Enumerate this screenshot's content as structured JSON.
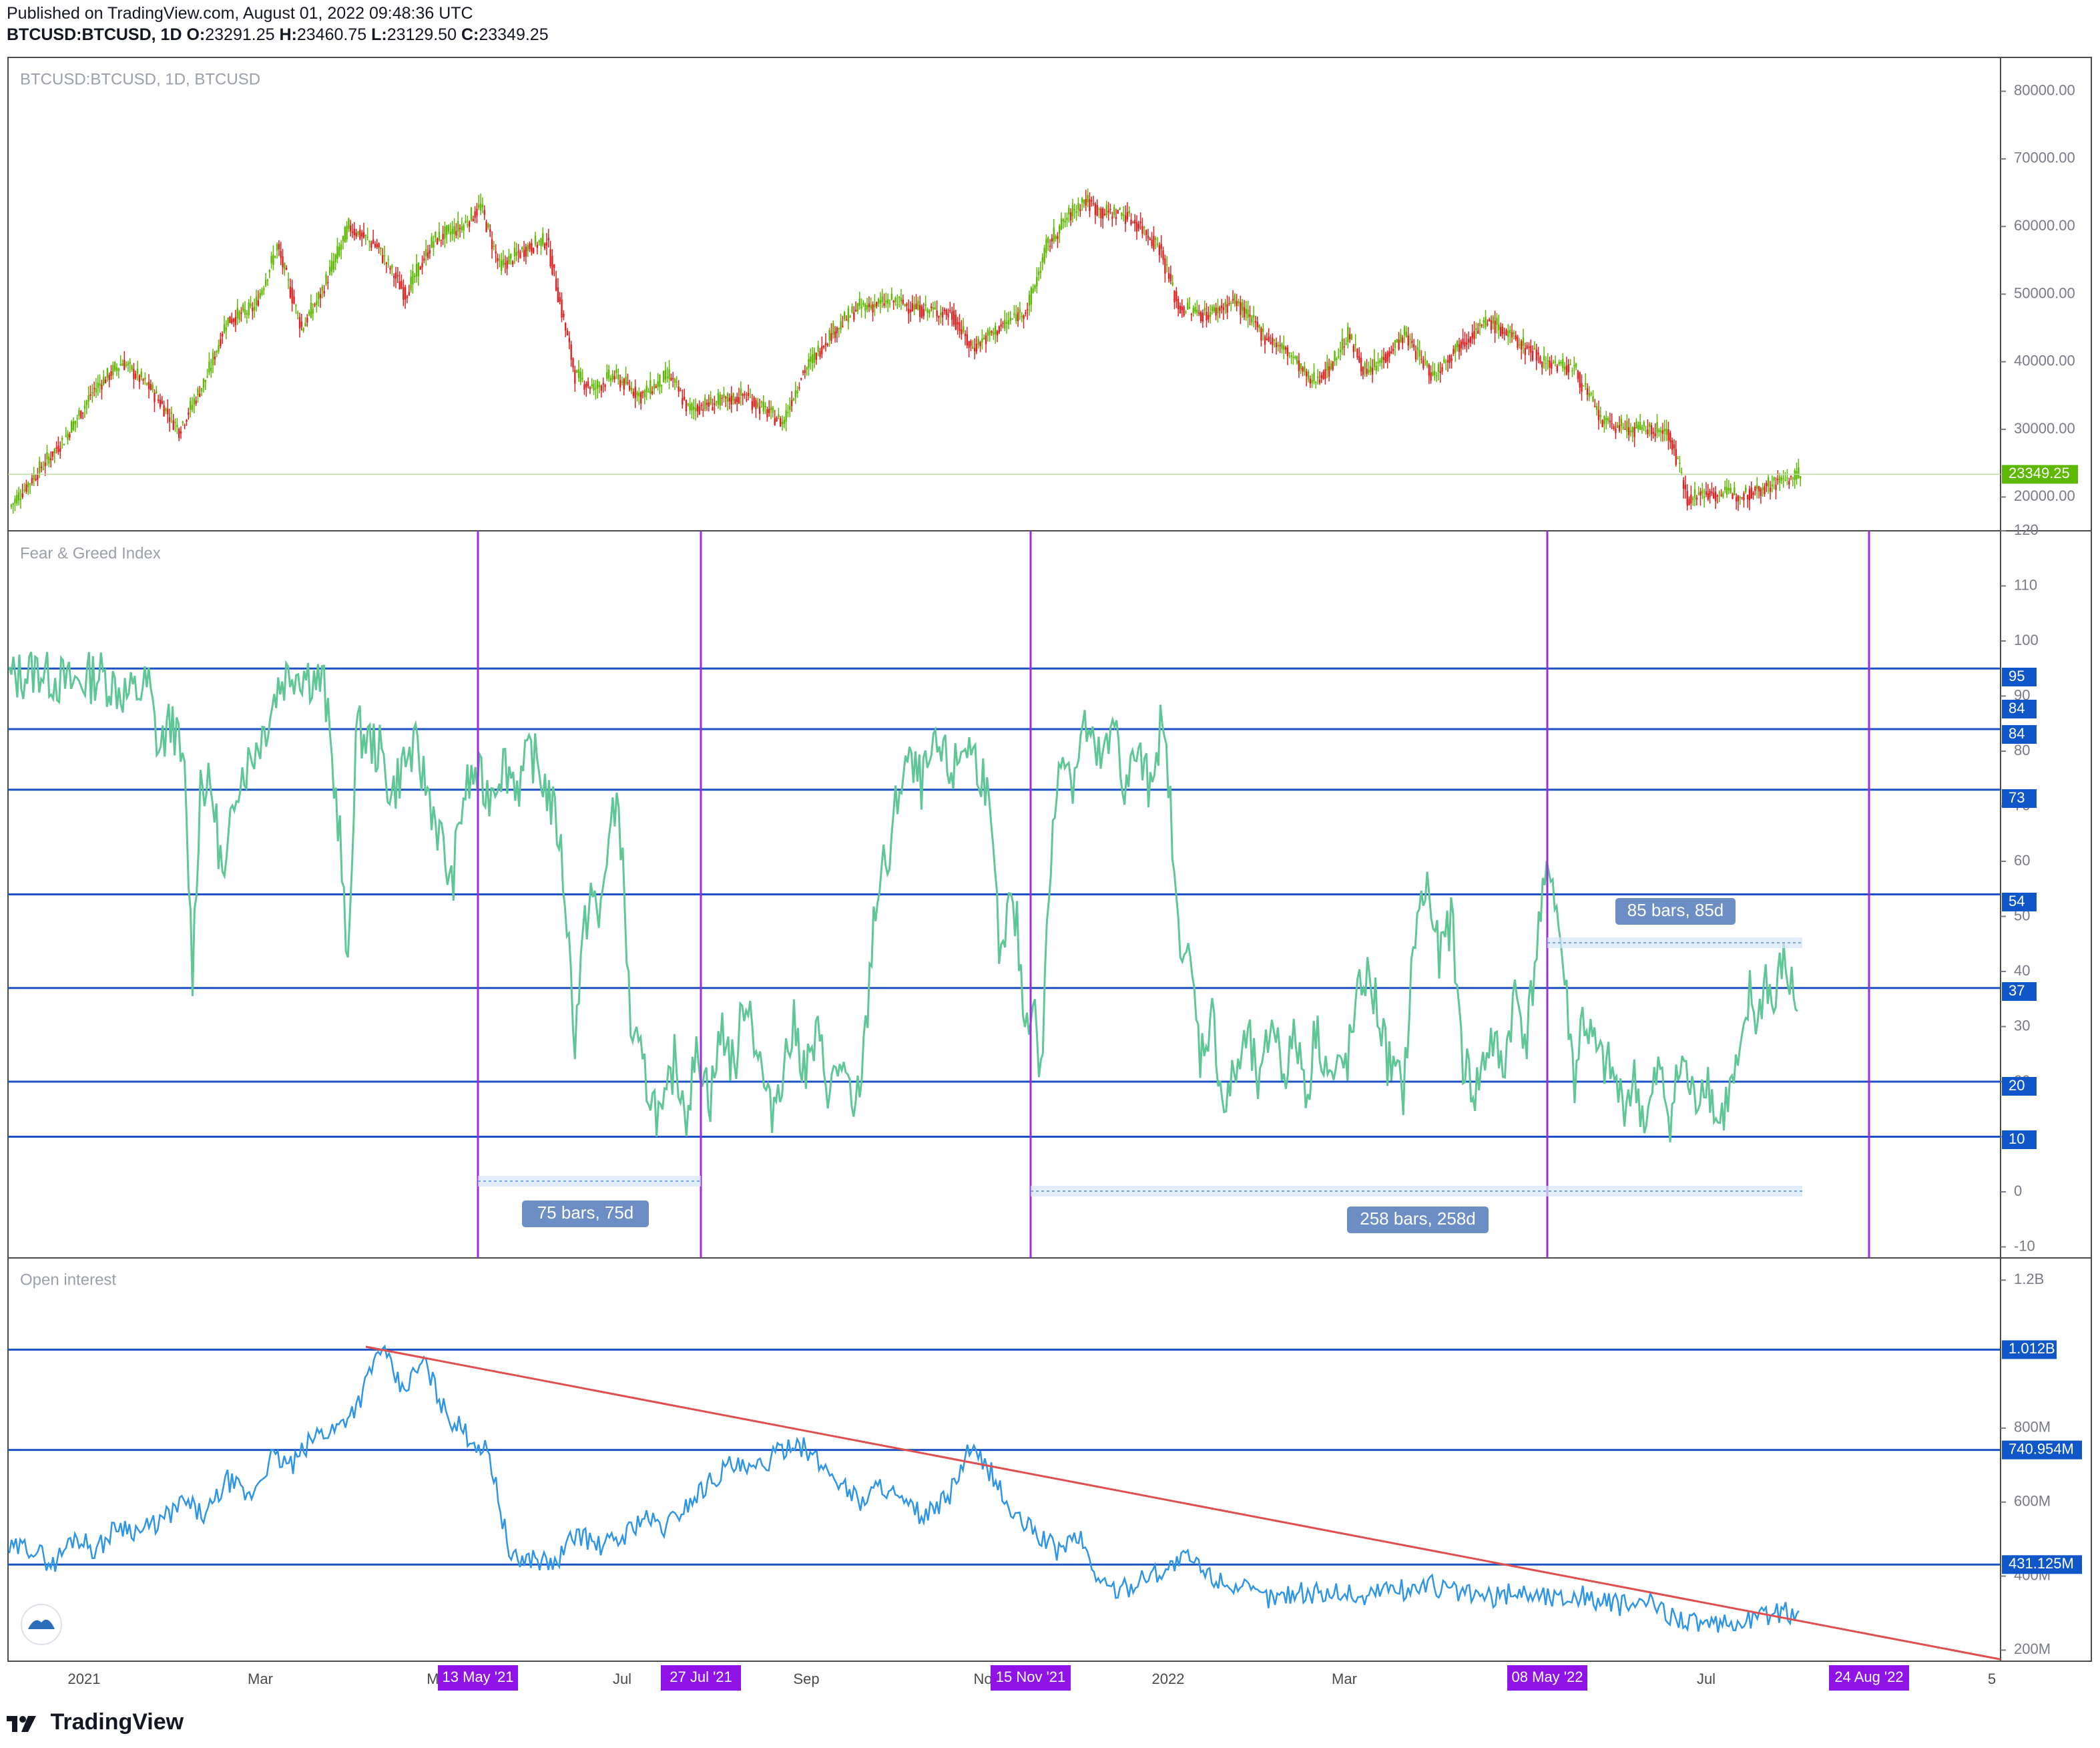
{
  "header": {
    "published": "Published on TradingView.com, August 01, 2022 09:48:36 UTC",
    "symbol": "BTCUSD:BTCUSD, 1D",
    "o_label": "O:",
    "o": "23291.25",
    "h_label": "H:",
    "h": "23460.75",
    "l_label": "L:",
    "l": "23129.50",
    "c_label": "C:",
    "c": "23349.25"
  },
  "footer": {
    "brand": "TradingView"
  },
  "colors": {
    "up": "#5cb800",
    "down": "#e0201f",
    "fng": "#5fc796",
    "oi": "#2f95e6",
    "hline": "#1d52c6",
    "vline": "#9c2ed9",
    "trend": "#e04f4f",
    "label_bg": "#0f57c8",
    "date_label_bg": "#8f13e6",
    "measure_bg": "#6c8ec4"
  },
  "chart_data": [
    {
      "type": "candlestick",
      "title": "BTCUSD:BTCUSD, 1D, BTCUSD",
      "ylim": [
        15000,
        85000
      ],
      "yticks": [
        "80000.00",
        "70000.00",
        "60000.00",
        "50000.00",
        "40000.00",
        "30000.00",
        "20000.00"
      ],
      "ytick_values": [
        80000,
        70000,
        60000,
        50000,
        40000,
        30000,
        20000
      ],
      "last_price": "23349.25",
      "last_price_value": 23349.25,
      "closes": [
        [
          0,
          18500
        ],
        [
          30,
          29000
        ],
        [
          45,
          36000
        ],
        [
          60,
          40000
        ],
        [
          75,
          36000
        ],
        [
          90,
          30000
        ],
        [
          105,
          38000
        ],
        [
          115,
          46000
        ],
        [
          130,
          48000
        ],
        [
          142,
          57000
        ],
        [
          155,
          45000
        ],
        [
          165,
          50000
        ],
        [
          180,
          60000
        ],
        [
          195,
          57000
        ],
        [
          210,
          50000
        ],
        [
          225,
          58000
        ],
        [
          240,
          60000
        ],
        [
          250,
          63000
        ],
        [
          260,
          54000
        ],
        [
          275,
          57000
        ],
        [
          285,
          58000
        ],
        [
          300,
          38000
        ],
        [
          310,
          36000
        ],
        [
          320,
          38000
        ],
        [
          335,
          35000
        ],
        [
          350,
          38000
        ],
        [
          360,
          33000
        ],
        [
          375,
          34000
        ],
        [
          390,
          35000
        ],
        [
          410,
          31000
        ],
        [
          420,
          38000
        ],
        [
          435,
          44000
        ],
        [
          450,
          48000
        ],
        [
          470,
          49000
        ],
        [
          480,
          48000
        ],
        [
          500,
          47000
        ],
        [
          510,
          42000
        ],
        [
          525,
          45000
        ],
        [
          540,
          48000
        ],
        [
          550,
          57000
        ],
        [
          560,
          61000
        ],
        [
          570,
          64000
        ],
        [
          580,
          62000
        ],
        [
          590,
          62000
        ],
        [
          600,
          60000
        ],
        [
          610,
          57000
        ],
        [
          620,
          48000
        ],
        [
          635,
          47000
        ],
        [
          650,
          49000
        ],
        [
          665,
          44000
        ],
        [
          680,
          41000
        ],
        [
          690,
          37000
        ],
        [
          700,
          39000
        ],
        [
          710,
          44000
        ],
        [
          720,
          38000
        ],
        [
          740,
          44000
        ],
        [
          755,
          38000
        ],
        [
          770,
          43000
        ],
        [
          785,
          46000
        ],
        [
          800,
          43000
        ],
        [
          815,
          40000
        ],
        [
          830,
          39000
        ],
        [
          845,
          31000
        ],
        [
          860,
          30000
        ],
        [
          870,
          30000
        ],
        [
          880,
          29500
        ],
        [
          890,
          20000
        ],
        [
          900,
          20500
        ],
        [
          920,
          20500
        ],
        [
          935,
          22000
        ],
        [
          950,
          23349
        ]
      ],
      "candles_total": 950
    },
    {
      "type": "line",
      "title": "Fear & Greed Index",
      "ylim": [
        -12,
        120
      ],
      "yticks": [
        "120",
        "110",
        "100",
        "90",
        "80",
        "70",
        "60",
        "50",
        "40",
        "30",
        "20",
        "10",
        "0",
        "-10"
      ],
      "ytick_values": [
        120,
        110,
        100,
        90,
        80,
        70,
        60,
        50,
        40,
        30,
        20,
        10,
        0,
        -10
      ],
      "levels": [
        "95",
        "84",
        "84",
        "73",
        "54",
        "37",
        "20",
        "10"
      ],
      "level_values": [
        95,
        84,
        73,
        54,
        37,
        20,
        10
      ],
      "annotations": [
        "75 bars, 75d",
        "258 bars, 258d",
        "85 bars, 85d"
      ],
      "points": [
        [
          0,
          93
        ],
        [
          15,
          95
        ],
        [
          30,
          92
        ],
        [
          45,
          94
        ],
        [
          60,
          90
        ],
        [
          70,
          92
        ],
        [
          75,
          80
        ],
        [
          82,
          86
        ],
        [
          88,
          75
        ],
        [
          92,
          40
        ],
        [
          96,
          75
        ],
        [
          102,
          72
        ],
        [
          108,
          55
        ],
        [
          114,
          75
        ],
        [
          120,
          78
        ],
        [
          128,
          84
        ],
        [
          135,
          92
        ],
        [
          142,
          95
        ],
        [
          150,
          94
        ],
        [
          158,
          92
        ],
        [
          162,
          78
        ],
        [
          166,
          65
        ],
        [
          170,
          38
        ],
        [
          174,
          84
        ],
        [
          180,
          82
        ],
        [
          186,
          80
        ],
        [
          192,
          72
        ],
        [
          198,
          78
        ],
        [
          204,
          80
        ],
        [
          210,
          73
        ],
        [
          216,
          65
        ],
        [
          222,
          55
        ],
        [
          228,
          72
        ],
        [
          234,
          76
        ],
        [
          240,
          72
        ],
        [
          248,
          78
        ],
        [
          256,
          74
        ],
        [
          262,
          80
        ],
        [
          270,
          73
        ],
        [
          276,
          65
        ],
        [
          280,
          50
        ],
        [
          284,
          28
        ],
        [
          288,
          45
        ],
        [
          292,
          55
        ],
        [
          296,
          48
        ],
        [
          300,
          62
        ],
        [
          306,
          72
        ],
        [
          312,
          30
        ],
        [
          318,
          22
        ],
        [
          322,
          18
        ],
        [
          328,
          12
        ],
        [
          334,
          24
        ],
        [
          340,
          15
        ],
        [
          346,
          26
        ],
        [
          352,
          17
        ],
        [
          358,
          30
        ],
        [
          364,
          22
        ],
        [
          370,
          37
        ],
        [
          376,
          25
        ],
        [
          382,
          14
        ],
        [
          388,
          22
        ],
        [
          394,
          30
        ],
        [
          400,
          22
        ],
        [
          406,
          28
        ],
        [
          412,
          18
        ],
        [
          418,
          24
        ],
        [
          424,
          12
        ],
        [
          430,
          28
        ],
        [
          434,
          50
        ],
        [
          438,
          58
        ],
        [
          442,
          60
        ],
        [
          446,
          72
        ],
        [
          450,
          78
        ],
        [
          458,
          74
        ],
        [
          466,
          80
        ],
        [
          474,
          76
        ],
        [
          480,
          82
        ],
        [
          490,
          75
        ],
        [
          494,
          60
        ],
        [
          498,
          40
        ],
        [
          502,
          52
        ],
        [
          506,
          48
        ],
        [
          510,
          30
        ],
        [
          514,
          36
        ],
        [
          518,
          20
        ],
        [
          522,
          55
        ],
        [
          528,
          82
        ],
        [
          534,
          75
        ],
        [
          540,
          85
        ],
        [
          546,
          78
        ],
        [
          552,
          80
        ],
        [
          556,
          86
        ],
        [
          560,
          72
        ],
        [
          566,
          80
        ],
        [
          572,
          74
        ],
        [
          578,
          84
        ],
        [
          582,
          76
        ],
        [
          586,
          50
        ],
        [
          590,
          45
        ],
        [
          594,
          38
        ],
        [
          598,
          25
        ],
        [
          604,
          32
        ],
        [
          610,
          15
        ],
        [
          616,
          22
        ],
        [
          622,
          28
        ],
        [
          628,
          18
        ],
        [
          634,
          32
        ],
        [
          640,
          22
        ],
        [
          646,
          28
        ],
        [
          652,
          18
        ],
        [
          656,
          30
        ],
        [
          664,
          20
        ],
        [
          672,
          24
        ],
        [
          680,
          40
        ],
        [
          686,
          35
        ],
        [
          692,
          24
        ],
        [
          700,
          18
        ],
        [
          706,
          48
        ],
        [
          712,
          56
        ],
        [
          718,
          42
        ],
        [
          724,
          50
        ],
        [
          730,
          24
        ],
        [
          736,
          18
        ],
        [
          744,
          28
        ],
        [
          750,
          22
        ],
        [
          756,
          36
        ],
        [
          762,
          28
        ],
        [
          768,
          48
        ],
        [
          774,
          60
        ],
        [
          780,
          42
        ],
        [
          786,
          20
        ],
        [
          790,
          32
        ],
        [
          798,
          24
        ],
        [
          804,
          22
        ],
        [
          810,
          16
        ],
        [
          816,
          20
        ],
        [
          822,
          12
        ],
        [
          828,
          22
        ],
        [
          834,
          14
        ],
        [
          840,
          24
        ],
        [
          846,
          16
        ],
        [
          852,
          22
        ],
        [
          858,
          12
        ],
        [
          864,
          18
        ],
        [
          870,
          24
        ],
        [
          874,
          36
        ],
        [
          878,
          30
        ],
        [
          882,
          40
        ],
        [
          886,
          32
        ],
        [
          890,
          42
        ],
        [
          894,
          38
        ],
        [
          898,
          34
        ]
      ],
      "points_total": 900
    },
    {
      "type": "line",
      "title": "Open interest",
      "ylim": [
        170,
        1260
      ],
      "yticks": [
        "1.2B",
        "800M",
        "600M",
        "400M",
        "200M"
      ],
      "ytick_values": [
        1200,
        800,
        600,
        400,
        200
      ],
      "levels": [
        "1.012B",
        "740.954M",
        "431.125M"
      ],
      "level_values": [
        1012,
        740.954,
        431.125
      ],
      "points": [
        [
          0,
          470
        ],
        [
          10,
          480
        ],
        [
          20,
          430
        ],
        [
          30,
          510
        ],
        [
          40,
          470
        ],
        [
          50,
          540
        ],
        [
          60,
          520
        ],
        [
          70,
          550
        ],
        [
          80,
          600
        ],
        [
          90,
          560
        ],
        [
          100,
          660
        ],
        [
          110,
          610
        ],
        [
          120,
          720
        ],
        [
          130,
          700
        ],
        [
          140,
          780
        ],
        [
          150,
          800
        ],
        [
          160,
          870
        ],
        [
          170,
          1020
        ],
        [
          180,
          900
        ],
        [
          190,
          980
        ],
        [
          200,
          840
        ],
        [
          210,
          780
        ],
        [
          220,
          730
        ],
        [
          230,
          440
        ],
        [
          240,
          450
        ],
        [
          250,
          430
        ],
        [
          260,
          520
        ],
        [
          270,
          480
        ],
        [
          280,
          500
        ],
        [
          290,
          560
        ],
        [
          300,
          530
        ],
        [
          310,
          590
        ],
        [
          320,
          650
        ],
        [
          330,
          700
        ],
        [
          340,
          680
        ],
        [
          350,
          720
        ],
        [
          360,
          770
        ],
        [
          370,
          710
        ],
        [
          380,
          660
        ],
        [
          390,
          600
        ],
        [
          400,
          650
        ],
        [
          410,
          590
        ],
        [
          420,
          560
        ],
        [
          430,
          610
        ],
        [
          440,
          740
        ],
        [
          450,
          680
        ],
        [
          460,
          560
        ],
        [
          470,
          520
        ],
        [
          480,
          470
        ],
        [
          490,
          510
        ],
        [
          500,
          380
        ],
        [
          510,
          360
        ],
        [
          520,
          400
        ],
        [
          530,
          420
        ],
        [
          540,
          450
        ],
        [
          550,
          400
        ],
        [
          560,
          380
        ],
        [
          570,
          350
        ],
        [
          580,
          340
        ],
        [
          590,
          360
        ],
        [
          600,
          350
        ],
        [
          610,
          360
        ],
        [
          620,
          340
        ],
        [
          630,
          370
        ],
        [
          640,
          360
        ],
        [
          650,
          380
        ],
        [
          660,
          360
        ],
        [
          670,
          350
        ],
        [
          680,
          340
        ],
        [
          690,
          360
        ],
        [
          700,
          350
        ],
        [
          710,
          340
        ],
        [
          720,
          350
        ],
        [
          730,
          330
        ],
        [
          740,
          320
        ],
        [
          750,
          330
        ],
        [
          760,
          300
        ],
        [
          770,
          280
        ],
        [
          780,
          260
        ],
        [
          790,
          270
        ],
        [
          800,
          290
        ],
        [
          810,
          300
        ],
        [
          820,
          300
        ]
      ],
      "points_total": 820,
      "trendline": [
        [
          0,
          1020
        ],
        [
          1000,
          175
        ]
      ]
    }
  ],
  "x_axis": {
    "ticks": [
      "2021",
      "Mar",
      "May",
      "Jul",
      "Sep",
      "Nov",
      "2022",
      "Mar",
      "Jul",
      "5"
    ],
    "date_labels": [
      "13 May '21",
      "27 Jul '21",
      "15 Nov '21",
      "08 May '22",
      "24 Aug '22"
    ]
  }
}
